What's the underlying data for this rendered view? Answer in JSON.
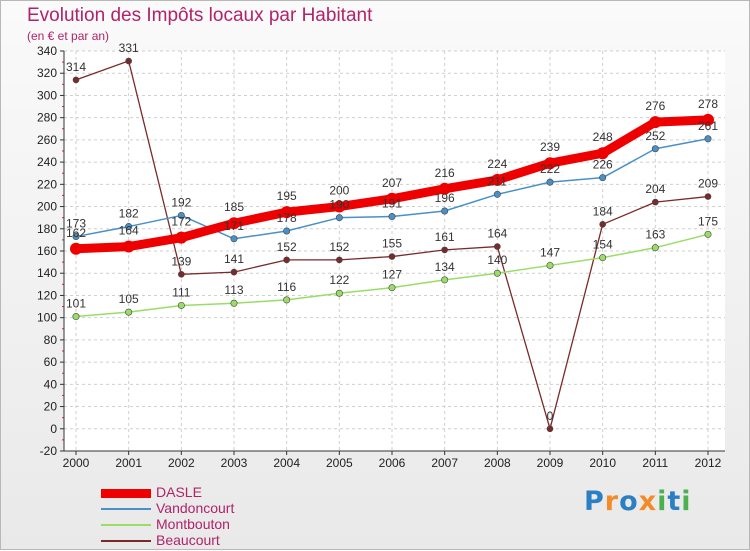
{
  "title": "Evolution des Impôts locaux par Habitant",
  "subtitle": "(en € et par an)",
  "logo": {
    "text": "Proxiti",
    "letters": [
      "P",
      "r",
      "o",
      "x",
      "i",
      "t",
      "i"
    ],
    "colors": [
      "#2b7fc3",
      "#f28c28",
      "#2b7fc3",
      "#f28c28",
      "#4caf50",
      "#2b7fc3",
      "#4caf50"
    ]
  },
  "chart_data": {
    "type": "line",
    "title": "Evolution des Impôts locaux par Habitant",
    "subtitle": "(en € et par an)",
    "x": [
      "2000",
      "2001",
      "2002",
      "2003",
      "2004",
      "2005",
      "2006",
      "2007",
      "2008",
      "2009",
      "2010",
      "2011",
      "2012"
    ],
    "ylim": [
      -20,
      340
    ],
    "yticks": [
      -20,
      0,
      20,
      40,
      60,
      80,
      100,
      120,
      140,
      160,
      180,
      200,
      220,
      240,
      260,
      280,
      300,
      320,
      340
    ],
    "grid": true,
    "legend_position": "bottom-left",
    "series": [
      {
        "name": "DASLE",
        "color": "#ee0000",
        "values": [
          162,
          164,
          172,
          185,
          195,
          200,
          207,
          216,
          224,
          239,
          248,
          276,
          278
        ]
      },
      {
        "name": "Vandoncourt",
        "color": "#4a90c8",
        "values": [
          173,
          182,
          192,
          171,
          178,
          190,
          191,
          196,
          211,
          222,
          226,
          252,
          261
        ]
      },
      {
        "name": "Montbouton",
        "color": "#99dd66",
        "values": [
          101,
          105,
          111,
          113,
          116,
          122,
          127,
          134,
          140,
          147,
          154,
          163,
          175
        ]
      },
      {
        "name": "Beaucourt",
        "color": "#7a2a2a",
        "values": [
          314,
          331,
          139,
          141,
          152,
          152,
          155,
          161,
          164,
          0,
          184,
          204,
          209
        ]
      }
    ]
  }
}
